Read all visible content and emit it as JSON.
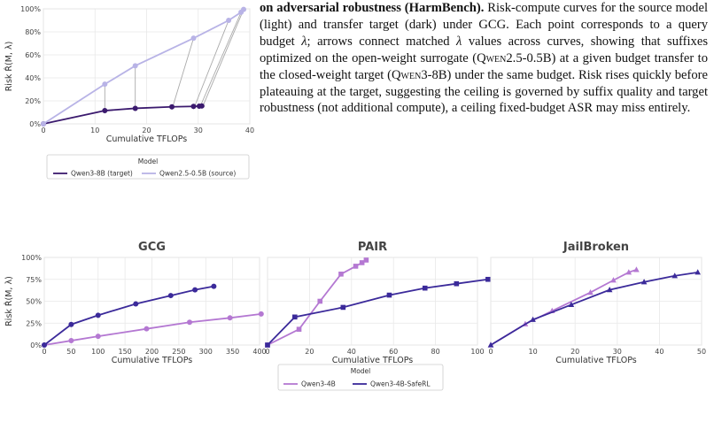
{
  "caption": {
    "bold": "on adversarial robustness (HarmBench).",
    "p1": " Risk-compute curves for the source model (light) and transfer target (dark) under GCG. Each point corresponds to a query budget ",
    "p2": "; arrows connect matched ",
    "p3": " values across curves, showing that suffixes optimized on the open-weight surrogate (",
    "src_model": "Qwen2.5-0.5B",
    "p4": ") at a given budget transfer to the closed-weight target (",
    "tgt_model": "Qwen3-8B",
    "p5": ") under the same budget. Risk rises quickly before plateauing at the target, suggesting the ceiling is governed by suffix quality and target robustness (not additional compute), a ceiling fixed-budget ASR may miss entirely.",
    "lambda": "λ"
  },
  "colors": {
    "light": "#b8b3e6",
    "dark": "#3b1a6e",
    "mid": "#b478d2",
    "navy": "#3b2a9a",
    "arrow": "#aaaaaa"
  },
  "chart_data": [
    {
      "type": "line",
      "xlabel": "Cumulative TFLOPs",
      "ylabel": "Risk R̂(M, λ)",
      "xlim": [
        0,
        40
      ],
      "ylim": [
        0,
        100
      ],
      "xticks": [
        "0",
        "10",
        "20",
        "30",
        "40"
      ],
      "yticks": [
        "0%",
        "20%",
        "40%",
        "60%",
        "80%",
        "100%"
      ],
      "series": [
        {
          "name": "Qwen3-8B (target)",
          "x": [
            0,
            11.9,
            17.8,
            24.9,
            29.1,
            30.2,
            30.7
          ],
          "y": [
            0,
            11.5,
            13.5,
            14.8,
            15.2,
            15.4,
            15.6
          ]
        },
        {
          "name": "Qwen2.5-0.5B (source)",
          "x": [
            0,
            11.9,
            17.8,
            29.1,
            35.9,
            38.3,
            38.8
          ],
          "y": [
            0,
            34.5,
            50.5,
            74.5,
            90,
            97,
            99.5
          ]
        }
      ],
      "legend": {
        "title": "Model",
        "placement": "bottom"
      },
      "grid": true
    },
    {
      "type": "line",
      "title": "GCG",
      "xlabel": "Cumulative TFLOPs",
      "ylabel": "Risk R̂(M, λ)",
      "xlim": [
        0,
        400
      ],
      "ylim": [
        0,
        100
      ],
      "xticks": [
        "0",
        "50",
        "100",
        "150",
        "200",
        "250",
        "300",
        "350",
        "400"
      ],
      "yticks": [
        "0%",
        "25%",
        "50%",
        "75%",
        "100%"
      ],
      "series": [
        {
          "name": "Qwen3-4B",
          "x": [
            0,
            50,
            100,
            190,
            270,
            345,
            403
          ],
          "y": [
            0,
            5,
            10,
            18.5,
            26,
            31,
            35.5
          ]
        },
        {
          "name": "Qwen3-4B-SafeRL",
          "x": [
            0,
            50,
            100,
            170,
            235,
            280,
            315
          ],
          "y": [
            0,
            23.5,
            34,
            47,
            56.5,
            63,
            67
          ]
        }
      ],
      "grid": true
    },
    {
      "type": "line",
      "title": "PAIR",
      "xlabel": "Cumulative TFLOPs",
      "xlim": [
        0,
        100
      ],
      "ylim": [
        0,
        100
      ],
      "xticks": [
        "0",
        "20",
        "40",
        "60",
        "80",
        "100"
      ],
      "yticks": [
        "0%",
        "25%",
        "50%",
        "75%",
        "100%"
      ],
      "series": [
        {
          "name": "Qwen3-4B",
          "x": [
            0,
            15,
            25,
            35,
            42,
            45,
            47
          ],
          "y": [
            0,
            18,
            50,
            81,
            90,
            94,
            97
          ]
        },
        {
          "name": "Qwen3-4B-SafeRL",
          "x": [
            0,
            13,
            36,
            58,
            75,
            90,
            105
          ],
          "y": [
            0,
            32,
            43,
            57,
            65,
            70,
            75
          ]
        }
      ],
      "grid": true
    },
    {
      "type": "line",
      "title": "JailBroken",
      "xlabel": "Cumulative TFLOPs",
      "xlim": [
        0,
        55
      ],
      "ylim": [
        0,
        100
      ],
      "xticks": [
        "0",
        "10",
        "20",
        "30",
        "40",
        "50"
      ],
      "yticks": [
        "0%",
        "25%",
        "50%",
        "75%",
        "100%"
      ],
      "series": [
        {
          "name": "Qwen3-4B",
          "x": [
            0,
            9,
            16,
            26,
            32,
            36,
            38
          ],
          "y": [
            0,
            24,
            39,
            60,
            74,
            83,
            86
          ]
        },
        {
          "name": "Qwen3-4B-SafeRL",
          "x": [
            0,
            11,
            21,
            31,
            40,
            48,
            54
          ],
          "y": [
            0,
            29,
            46,
            63,
            72,
            79,
            83
          ]
        }
      ],
      "grid": true
    }
  ],
  "legend2": {
    "title": "Model",
    "items": [
      "Qwen3-4B",
      "Qwen3-4B-SafeRL"
    ]
  }
}
